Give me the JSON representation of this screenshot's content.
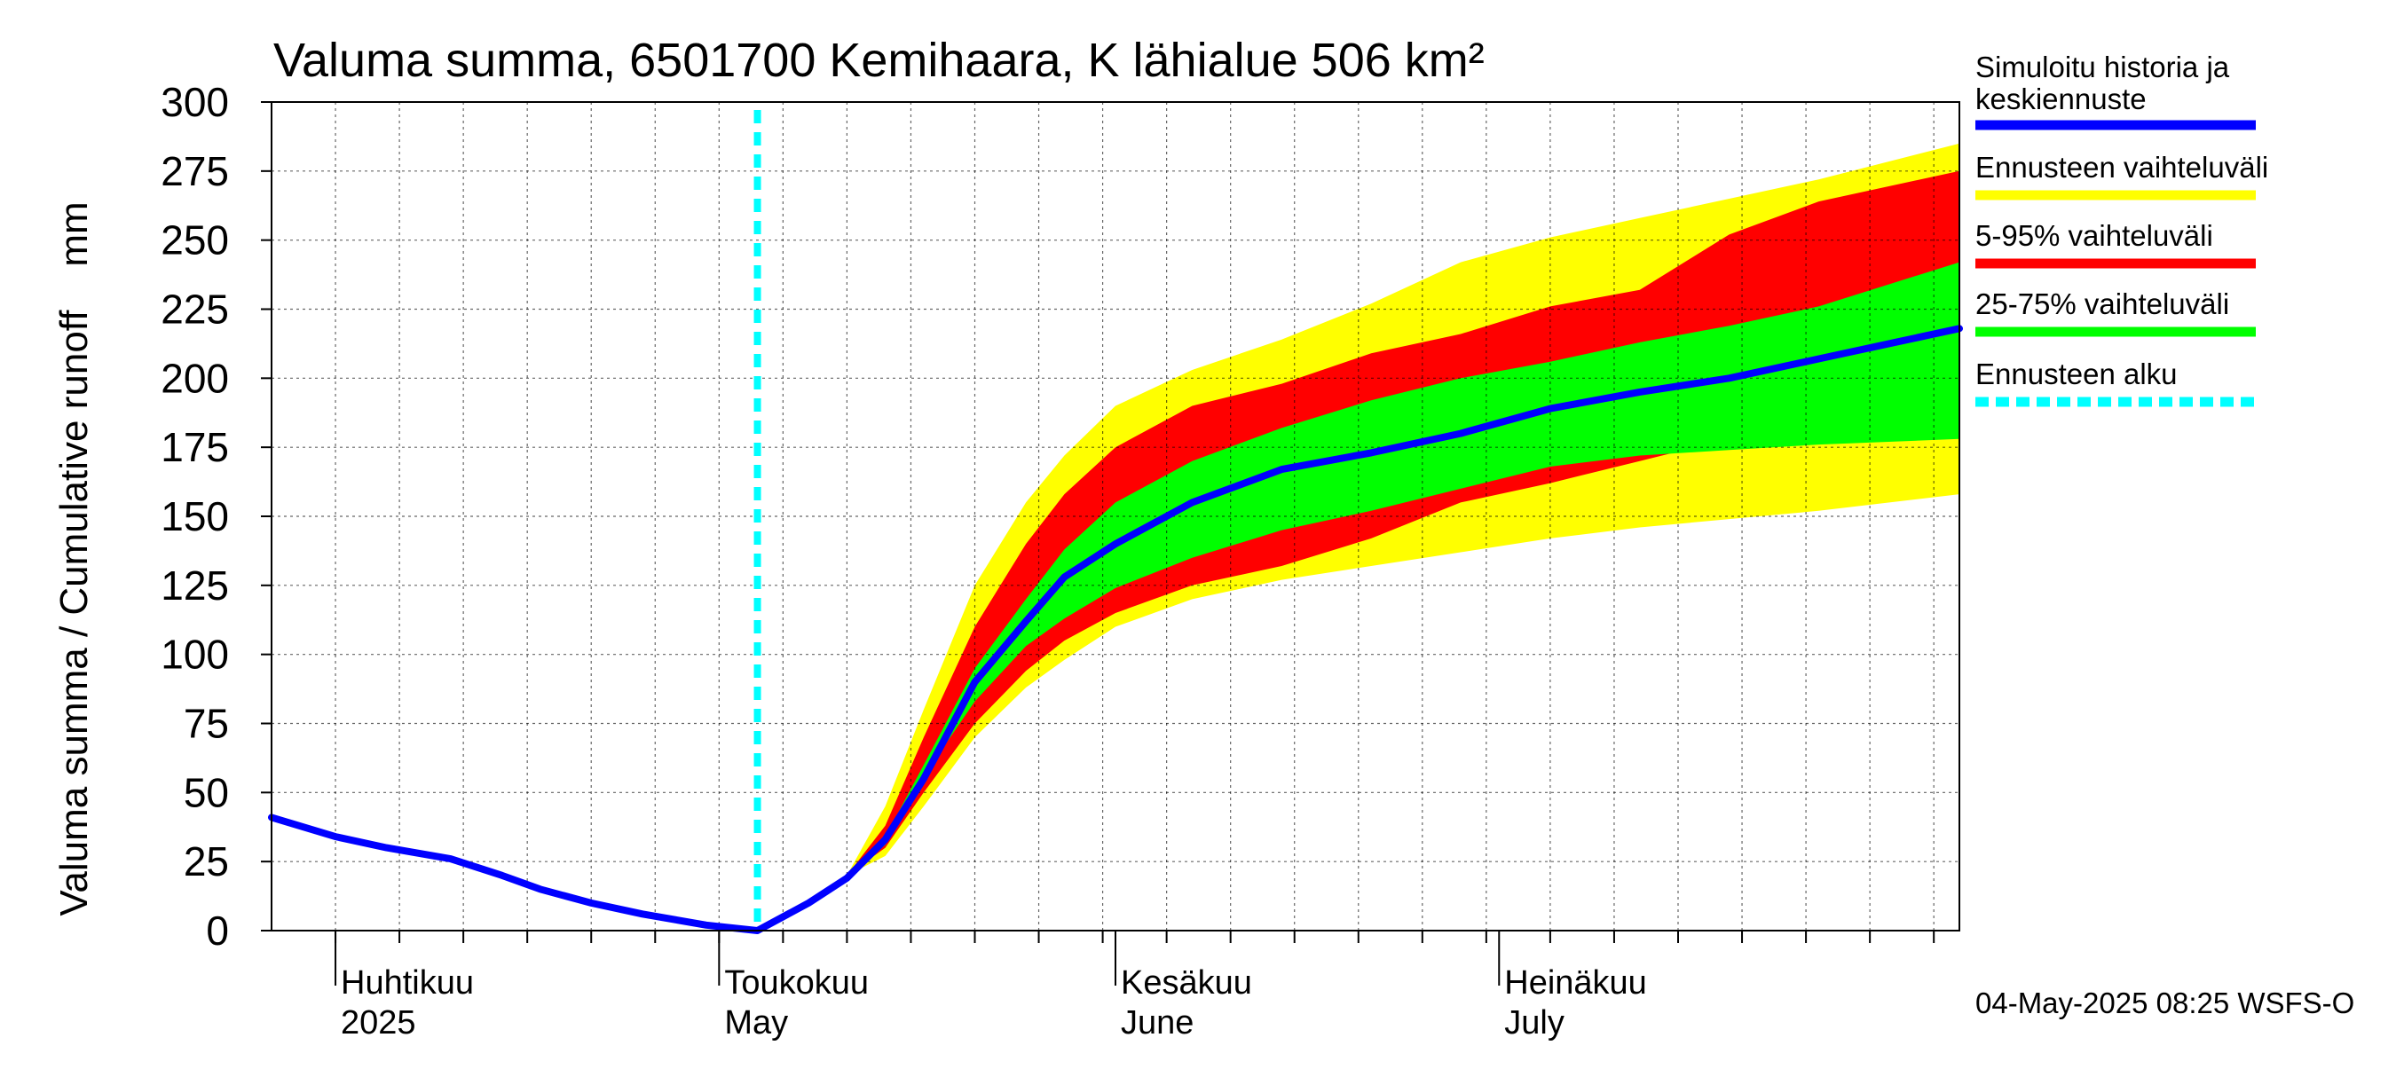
{
  "chart_data": {
    "type": "area",
    "title": "Valuma summa, 6501700 Kemihaara, K lähialue 506 km²",
    "ylabel": "Valuma summa / Cumulative runoff    mm",
    "ylim": [
      0,
      300
    ],
    "yticks": [
      0,
      25,
      50,
      75,
      100,
      125,
      150,
      175,
      200,
      225,
      250,
      275,
      300
    ],
    "xlim": [
      "2025-03-27",
      "2025-08-06"
    ],
    "x_month_labels": [
      {
        "date": "2025-04-01",
        "line1": "Huhtikuu",
        "line2": "2025"
      },
      {
        "date": "2025-05-01",
        "line1": "Toukokuu",
        "line2": "May"
      },
      {
        "date": "2025-06-01",
        "line1": "Kesäkuu",
        "line2": "June"
      },
      {
        "date": "2025-07-01",
        "line1": "Heinäkuu",
        "line2": "July"
      }
    ],
    "grid": true,
    "legend_position": "right",
    "forecast_start": "2025-05-04",
    "bands": [
      {
        "name": "Ennusteen vaihteluväli",
        "color": "#ffff00",
        "x": [
          "2025-05-04",
          "2025-05-11",
          "2025-05-14",
          "2025-05-17",
          "2025-05-21",
          "2025-05-25",
          "2025-05-28",
          "2025-06-01",
          "2025-06-07",
          "2025-06-14",
          "2025-06-21",
          "2025-06-28",
          "2025-07-05",
          "2025-07-12",
          "2025-07-19",
          "2025-07-26",
          "2025-08-06"
        ],
        "upper": [
          0,
          20,
          45,
          80,
          125,
          155,
          172,
          190,
          203,
          214,
          227,
          242,
          251,
          258,
          265,
          272,
          285
        ],
        "lower": [
          0,
          20,
          27,
          45,
          70,
          88,
          98,
          110,
          120,
          127,
          132,
          137,
          142,
          146,
          149,
          152,
          158
        ]
      },
      {
        "name": "5-95% vaihteluväli",
        "color": "#ff0000",
        "x": [
          "2025-05-04",
          "2025-05-11",
          "2025-05-14",
          "2025-05-17",
          "2025-05-21",
          "2025-05-25",
          "2025-05-28",
          "2025-06-01",
          "2025-06-07",
          "2025-06-14",
          "2025-06-21",
          "2025-06-28",
          "2025-07-05",
          "2025-07-12",
          "2025-07-19",
          "2025-07-26",
          "2025-08-06"
        ],
        "upper": [
          0,
          20,
          38,
          70,
          110,
          140,
          158,
          175,
          190,
          198,
          209,
          216,
          226,
          232,
          252,
          264,
          275
        ],
        "lower": [
          0,
          20,
          30,
          50,
          75,
          94,
          105,
          115,
          125,
          132,
          142,
          155,
          162,
          170,
          178,
          182,
          190
        ]
      },
      {
        "name": "25-75% vaihteluväli",
        "color": "#00ff00",
        "x": [
          "2025-05-04",
          "2025-05-11",
          "2025-05-14",
          "2025-05-17",
          "2025-05-21",
          "2025-05-25",
          "2025-05-28",
          "2025-06-01",
          "2025-06-07",
          "2025-06-14",
          "2025-06-21",
          "2025-06-28",
          "2025-07-05",
          "2025-07-12",
          "2025-07-19",
          "2025-07-26",
          "2025-08-06"
        ],
        "upper": [
          0,
          20,
          34,
          60,
          95,
          120,
          138,
          155,
          170,
          182,
          192,
          200,
          206,
          213,
          219,
          226,
          242
        ],
        "lower": [
          0,
          20,
          31,
          56,
          83,
          103,
          113,
          124,
          135,
          145,
          152,
          160,
          168,
          172,
          174,
          176,
          178
        ]
      }
    ],
    "series": [
      {
        "name": "Simuloitu historia ja keskiennuste",
        "color": "#0000ff",
        "x": [
          "2025-03-27",
          "2025-04-01",
          "2025-04-05",
          "2025-04-10",
          "2025-04-14",
          "2025-04-17",
          "2025-04-21",
          "2025-04-25",
          "2025-04-30",
          "2025-05-04",
          "2025-05-08",
          "2025-05-11",
          "2025-05-14",
          "2025-05-17",
          "2025-05-21",
          "2025-05-25",
          "2025-05-28",
          "2025-06-01",
          "2025-06-07",
          "2025-06-14",
          "2025-06-21",
          "2025-06-28",
          "2025-07-05",
          "2025-07-12",
          "2025-07-19",
          "2025-07-26",
          "2025-08-06"
        ],
        "y": [
          41,
          34,
          30,
          26,
          20,
          15,
          10,
          6,
          2,
          0,
          10,
          19,
          33,
          55,
          90,
          112,
          128,
          140,
          155,
          167,
          173,
          180,
          189,
          195,
          200,
          207,
          218
        ]
      }
    ]
  },
  "legend": {
    "items": [
      {
        "line1": "Simuloitu historia ja",
        "line2": "keskiennuste",
        "color": "#0000ff",
        "dash": false
      },
      {
        "line1": "Ennusteen vaihteluväli",
        "line2": "",
        "color": "#ffff00",
        "dash": false
      },
      {
        "line1": "5-95% vaihteluväli",
        "line2": "",
        "color": "#ff0000",
        "dash": false
      },
      {
        "line1": "25-75% vaihteluväli",
        "line2": "",
        "color": "#00ff00",
        "dash": false
      },
      {
        "line1": "Ennusteen alku",
        "line2": "",
        "color": "#00ffff",
        "dash": true
      }
    ]
  },
  "footer": {
    "timestamp": "04-May-2025 08:25 WSFS-O"
  }
}
